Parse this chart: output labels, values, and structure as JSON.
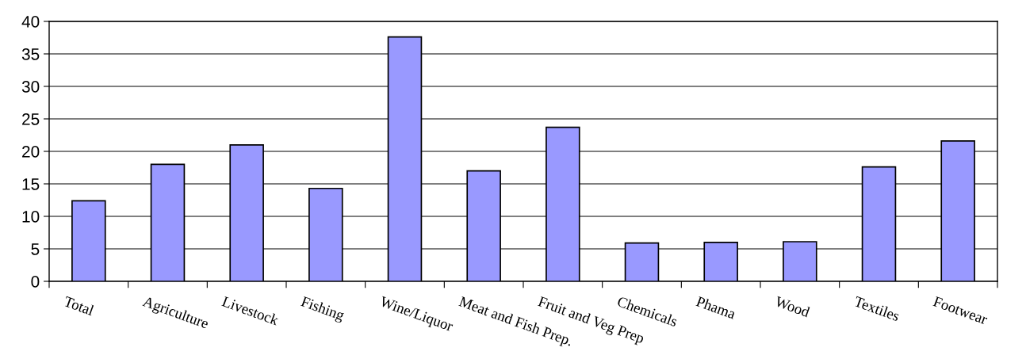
{
  "chart_data": {
    "type": "bar",
    "categories": [
      "Total",
      "Agriculture",
      "Livestock",
      "Fishing",
      "Wine/Liquor",
      "Meat and Fish Prep.",
      "Fruit and Veg Prep",
      "Chemicals",
      "Phama",
      "Wood",
      "Textiles",
      "Footwear"
    ],
    "values": [
      12.4,
      18.0,
      21.0,
      14.3,
      37.6,
      17.0,
      23.7,
      5.9,
      6.0,
      6.1,
      17.6,
      21.6
    ],
    "color": "#9999ff",
    "ylim": [
      0,
      40
    ],
    "yticks": [
      0,
      5,
      10,
      15,
      20,
      25,
      30,
      35,
      40
    ],
    "grid": "y"
  }
}
